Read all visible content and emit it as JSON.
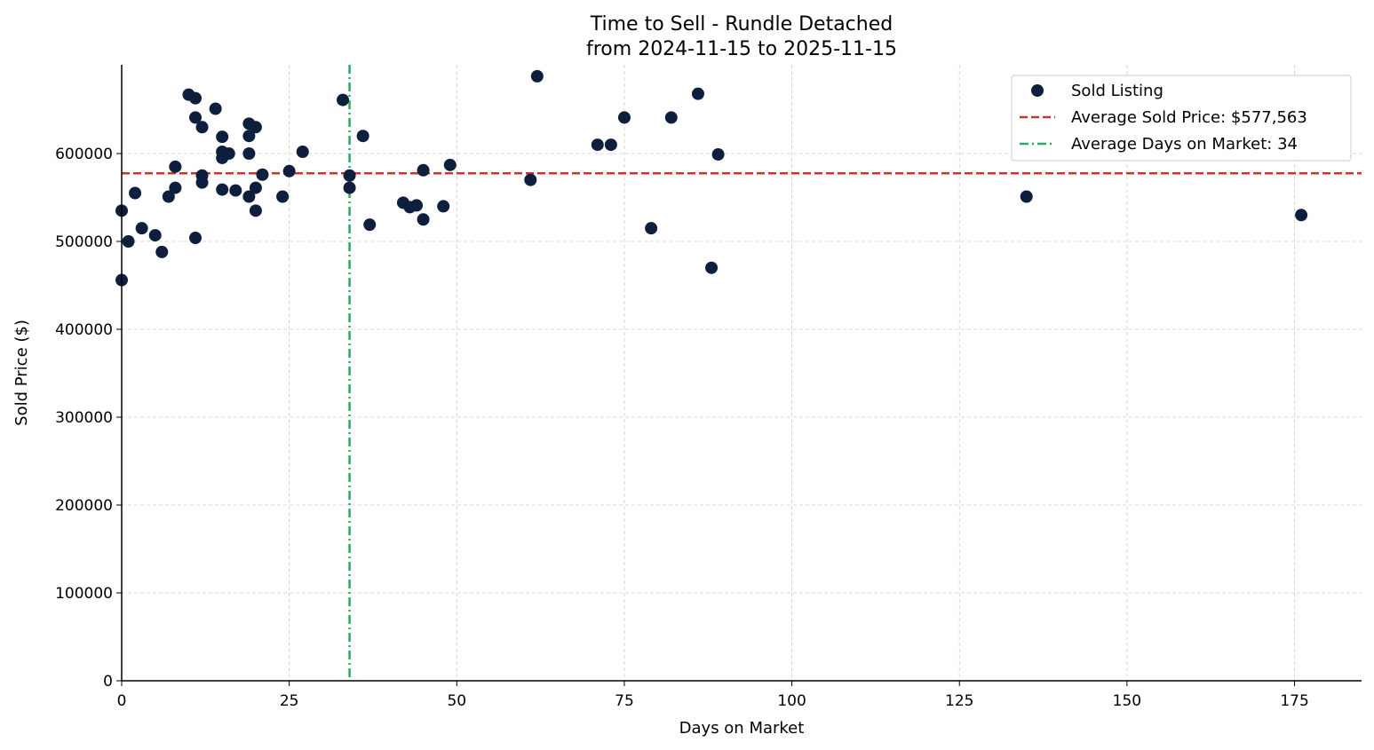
{
  "chart_data": {
    "type": "scatter",
    "title": "Time to Sell - Rundle Detached",
    "subtitle": "from 2024-11-15 to 2025-11-15",
    "xlabel": "Days on Market",
    "ylabel": "Sold Price ($)",
    "xlim": [
      0,
      185
    ],
    "ylim": [
      0,
      701000
    ],
    "xticks": [
      0,
      25,
      50,
      75,
      100,
      125,
      150,
      175
    ],
    "yticks": [
      0,
      100000,
      200000,
      300000,
      400000,
      500000,
      600000
    ],
    "grid": true,
    "legend_position": "top-right",
    "legend": [
      "Sold Listing",
      "Average Sold Price: $577,563",
      "Average Days on Market: 34"
    ],
    "colors": {
      "points": "#0d1f3c",
      "avg_price": "#c0392b",
      "avg_days": "#27ae60"
    },
    "avg_price": 577563,
    "avg_days": 34,
    "points": [
      [
        0,
        535000
      ],
      [
        0,
        456000
      ],
      [
        1,
        500000
      ],
      [
        2,
        555000
      ],
      [
        3,
        515000
      ],
      [
        5,
        507000
      ],
      [
        6,
        488000
      ],
      [
        7,
        551000
      ],
      [
        8,
        585000
      ],
      [
        8,
        561000
      ],
      [
        10,
        667000
      ],
      [
        11,
        663000
      ],
      [
        11,
        641000
      ],
      [
        11,
        504000
      ],
      [
        12,
        630000
      ],
      [
        12,
        575000
      ],
      [
        12,
        567000
      ],
      [
        14,
        651000
      ],
      [
        15,
        619000
      ],
      [
        15,
        602000
      ],
      [
        15,
        595000
      ],
      [
        15,
        559000
      ],
      [
        16,
        600000
      ],
      [
        17,
        558000
      ],
      [
        19,
        634000
      ],
      [
        19,
        620000
      ],
      [
        20,
        630000
      ],
      [
        19,
        600000
      ],
      [
        19,
        551000
      ],
      [
        20,
        561000
      ],
      [
        20,
        535000
      ],
      [
        21,
        576000
      ],
      [
        24,
        551000
      ],
      [
        25,
        580000
      ],
      [
        27,
        602000
      ],
      [
        33,
        661000
      ],
      [
        34,
        575000
      ],
      [
        34,
        561000
      ],
      [
        36,
        620000
      ],
      [
        37,
        519000
      ],
      [
        42,
        544000
      ],
      [
        43,
        539000
      ],
      [
        44,
        541000
      ],
      [
        45,
        581000
      ],
      [
        45,
        525000
      ],
      [
        48,
        540000
      ],
      [
        49,
        587000
      ],
      [
        61,
        570000
      ],
      [
        62,
        688000
      ],
      [
        71,
        610000
      ],
      [
        73,
        610000
      ],
      [
        75,
        641000
      ],
      [
        79,
        515000
      ],
      [
        82,
        641000
      ],
      [
        86,
        668000
      ],
      [
        88,
        470000
      ],
      [
        89,
        599000
      ],
      [
        135,
        551000
      ],
      [
        176,
        530000
      ]
    ]
  }
}
